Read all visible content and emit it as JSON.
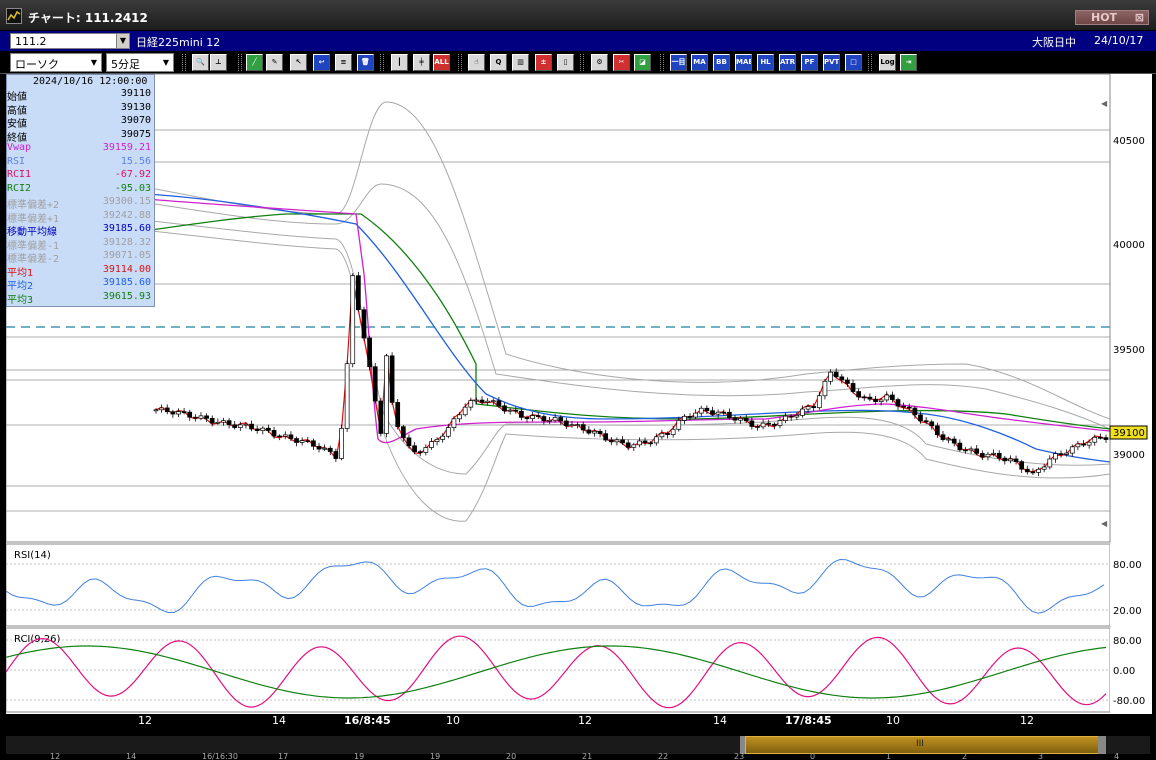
{
  "window": {
    "title": "チャート: 111.2412",
    "hot_label": "HOT",
    "close_glyph": "⊠"
  },
  "infobar": {
    "code": "111.2",
    "symbol": "日経225mini 12",
    "market": "大阪日中",
    "date": "24/10/17"
  },
  "toolbar": {
    "chart_type": "ローソク",
    "interval": "5分足",
    "buttons": [
      {
        "name": "zoom-icon",
        "label": "🔍",
        "style": "normal"
      },
      {
        "name": "crosshair-icon",
        "label": "⊥",
        "style": "normal"
      },
      {
        "name": "trendline-icon",
        "label": "╱",
        "style": "green"
      },
      {
        "name": "draw-icon",
        "label": "✎",
        "style": "normal"
      },
      {
        "name": "cursor-icon",
        "label": "↖",
        "style": "normal"
      },
      {
        "name": "erase-icon",
        "label": "↩",
        "style": "blue"
      },
      {
        "name": "note-icon",
        "label": "≡",
        "style": "normal"
      },
      {
        "name": "trash-icon",
        "label": "🗑",
        "style": "blue"
      },
      {
        "name": "candle-icon",
        "label": "┃",
        "style": "normal"
      },
      {
        "name": "candle-mix-icon",
        "label": "╪",
        "style": "normal"
      },
      {
        "name": "all-icon",
        "label": "ALL",
        "style": "red"
      },
      {
        "name": "hand-icon",
        "label": "☝",
        "style": "normal"
      },
      {
        "name": "zoom-bar-icon",
        "label": "Q",
        "style": "normal"
      },
      {
        "name": "bars-icon",
        "label": "▥",
        "style": "normal"
      },
      {
        "name": "compare-icon",
        "label": "±",
        "style": "red"
      },
      {
        "name": "lock-icon",
        "label": "▯",
        "style": "normal"
      },
      {
        "name": "settings-icon",
        "label": "⚙",
        "style": "normal"
      },
      {
        "name": "tools-icon",
        "label": "✂",
        "style": "red"
      },
      {
        "name": "color-icon",
        "label": "◪",
        "style": "green"
      },
      {
        "name": "indicator-ichi-icon",
        "label": "一目",
        "style": "blue"
      },
      {
        "name": "indicator-ma-icon",
        "label": "MA",
        "style": "blue"
      },
      {
        "name": "indicator-bb-icon",
        "label": "BB",
        "style": "blue"
      },
      {
        "name": "indicator-mae-icon",
        "label": "MAE",
        "style": "blue"
      },
      {
        "name": "indicator-hl-icon",
        "label": "HL",
        "style": "blue"
      },
      {
        "name": "indicator-atr-icon",
        "label": "ATR",
        "style": "blue"
      },
      {
        "name": "indicator-pf-icon",
        "label": "PF",
        "style": "blue"
      },
      {
        "name": "indicator-pvt-icon",
        "label": "PVT",
        "style": "blue"
      },
      {
        "name": "indicator-box-icon",
        "label": "□",
        "style": "blue"
      },
      {
        "name": "log-icon",
        "label": "Log",
        "style": "normal"
      },
      {
        "name": "export-icon",
        "label": "⇥",
        "style": "green"
      }
    ]
  },
  "ohlc": {
    "datetime": "2024/10/16  12:00:00",
    "rows": [
      {
        "label": "始値",
        "value": "39110",
        "color": "#000000"
      },
      {
        "label": "高値",
        "value": "39130",
        "color": "#000000"
      },
      {
        "label": "安値",
        "value": "39070",
        "color": "#000000"
      },
      {
        "label": "終値",
        "value": "39075",
        "color": "#000000"
      },
      {
        "label": "Vwap",
        "value": "39159.21",
        "color": "#d020d0"
      },
      {
        "label": "RSI",
        "value": "15.56",
        "color": "#6080e0"
      },
      {
        "label": "RCI1",
        "value": "-67.92",
        "color": "#e01060"
      },
      {
        "label": "RCI2",
        "value": "-95.03",
        "color": "#108010"
      },
      {
        "label": "標準偏差+2",
        "value": "39300.15",
        "color": "#a0a0a0"
      },
      {
        "label": "標準偏差+1",
        "value": "39242.88",
        "color": "#a0a0a0"
      },
      {
        "label": "移動平均線",
        "value": "39185.60",
        "color": "#0000c0"
      },
      {
        "label": "標準偏差-1",
        "value": "39128.32",
        "color": "#a0a0a0"
      },
      {
        "label": "標準偏差-2",
        "value": "39071.05",
        "color": "#a0a0a0"
      },
      {
        "label": "平均1",
        "value": "39114.00",
        "color": "#e01010"
      },
      {
        "label": "平均2",
        "value": "39185.60",
        "color": "#2060e0"
      },
      {
        "label": "平均3",
        "value": "39615.93",
        "color": "#108010"
      }
    ]
  },
  "price_axis": {
    "labels": [
      "40500",
      "40000",
      "39500",
      "39000"
    ],
    "current_price": "39100"
  },
  "rsi_panel": {
    "title": "RSI(14)",
    "labels": [
      "80.00",
      "20.00"
    ]
  },
  "rci_panel": {
    "title": "RCI(9,26)",
    "labels": [
      "80.00",
      "0.00",
      "-80.00"
    ]
  },
  "x_axis": {
    "ticks": [
      "12",
      "14",
      "16/8:45",
      "10",
      "12",
      "14",
      "17/8:45",
      "10",
      "12"
    ]
  },
  "mini_axis": {
    "ticks": [
      "12",
      "14",
      "16/16:30",
      "17",
      "19",
      "19",
      "20",
      "21",
      "22",
      "23",
      "0",
      "1",
      "2",
      "3",
      "4"
    ]
  },
  "colors": {
    "ma_short": "#e01010",
    "ma_mid": "#2060e0",
    "ma_long": "#108010",
    "vwap": "#d020d0",
    "bollinger": "#a8a8a8",
    "rsi": "#4080e0",
    "rci1": "#e01080",
    "rci2": "#108010",
    "dashed_line": "#2080a0"
  },
  "chart_data": {
    "type": "line",
    "price_candles": {
      "note_source": "candlestick series",
      "values": [
        39230,
        39220,
        39200,
        39180,
        39160,
        39150,
        39130,
        39100,
        39080,
        39050,
        39000,
        39950,
        39930,
        39200,
        39020,
        39060,
        39140,
        39260,
        39280,
        39240,
        39200,
        39190,
        39180,
        39150,
        39120,
        39080,
        39060,
        39080,
        39120,
        39200,
        39230,
        39210,
        39180,
        39150,
        39170,
        39210,
        39250,
        39420,
        39330,
        39270,
        39290,
        39240,
        39180,
        39100,
        39050,
        39020,
        39010,
        38980,
        38920,
        39000,
        39040,
        39080,
        39100
      ]
    },
    "rsi": {
      "range": [
        20,
        80
      ]
    },
    "rci": {
      "range": [
        -80,
        80
      ]
    }
  }
}
